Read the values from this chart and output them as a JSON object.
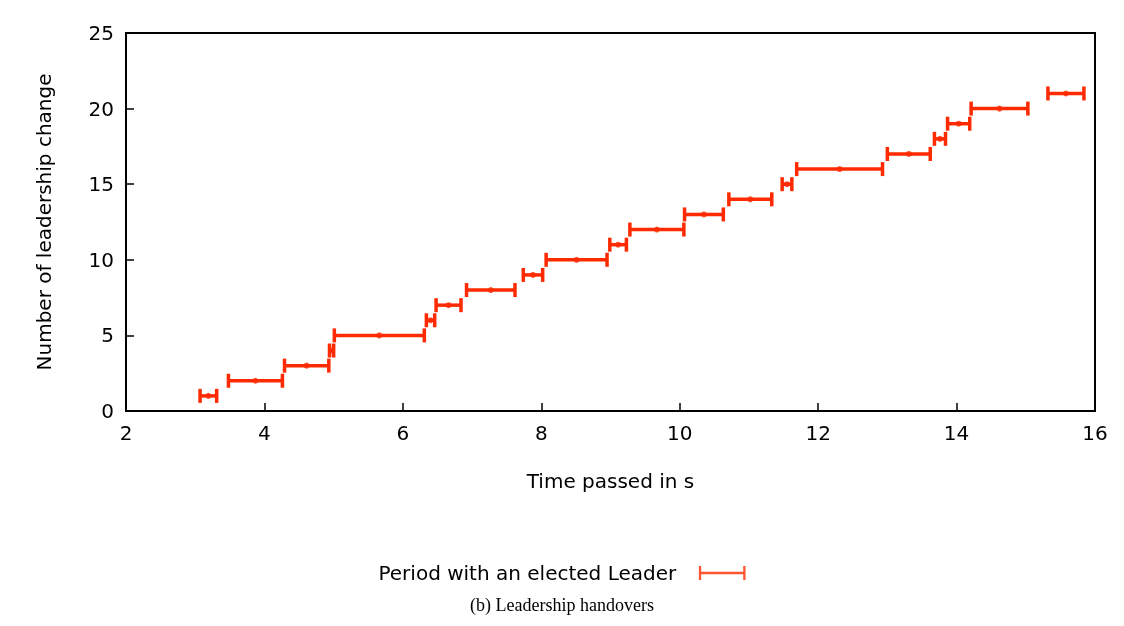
{
  "chart_data": {
    "type": "scatter",
    "xlabel": "Time passed in s",
    "ylabel": "Number of leadership change",
    "series": [
      {
        "name": "Period with an elected Leader",
        "color": "#ff2a00",
        "x": [
          3.19,
          3.87,
          4.61,
          4.97,
          5.66,
          6.4,
          6.66,
          7.27,
          7.88,
          8.51,
          9.11,
          9.67,
          10.35,
          11.02,
          11.55,
          12.31,
          13.31,
          13.76,
          14.03,
          14.62,
          15.58
        ],
        "values": [
          1,
          2,
          3,
          4,
          5,
          6,
          7,
          8,
          9,
          10,
          11,
          12,
          13,
          14,
          15,
          16,
          17,
          18,
          19,
          20,
          21
        ],
        "xerrors": [
          0.12,
          0.39,
          0.32,
          0.03,
          0.65,
          0.06,
          0.18,
          0.35,
          0.14,
          0.44,
          0.12,
          0.39,
          0.28,
          0.31,
          0.07,
          0.62,
          0.31,
          0.08,
          0.16,
          0.41,
          0.26
        ]
      }
    ],
    "marker": "circle",
    "xlim": [
      2,
      16
    ],
    "xticks": [
      2,
      4,
      6,
      8,
      10,
      12,
      14,
      16
    ],
    "ylim": [
      0,
      25
    ],
    "yticks": [
      0,
      5,
      10,
      15,
      20,
      25
    ],
    "grid": false,
    "legend": "bottom",
    "annotations": [
      "(b) Leadership handovers"
    ]
  }
}
